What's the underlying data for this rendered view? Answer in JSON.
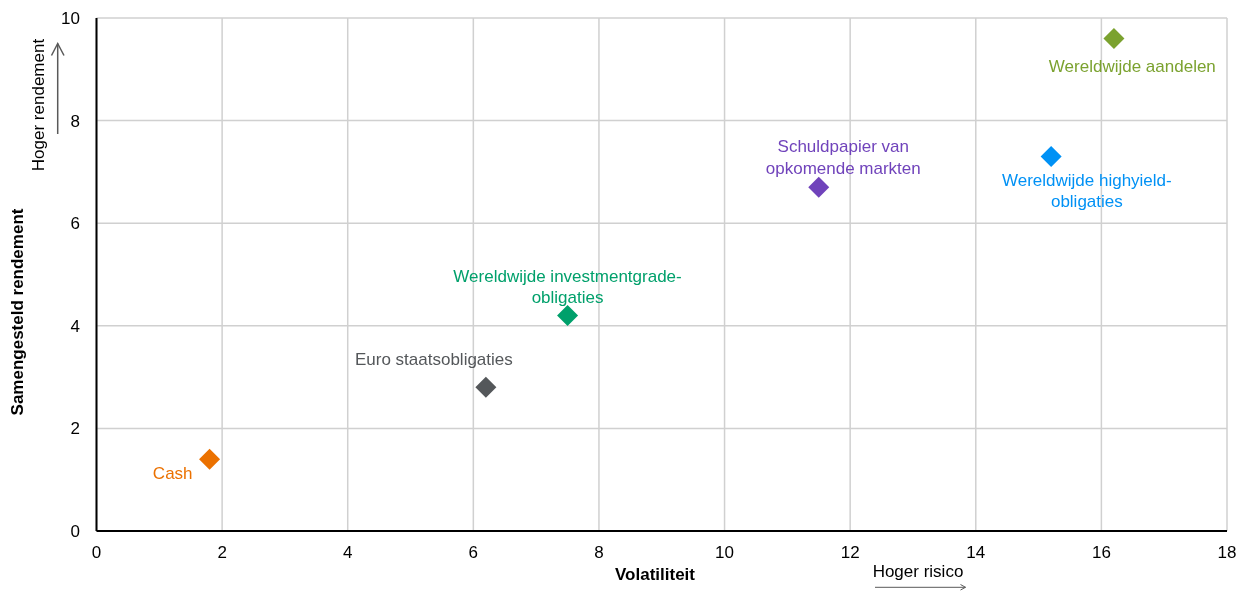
{
  "chart_data": {
    "type": "scatter",
    "xlabel": "Volatiliteit",
    "ylabel": "Samengesteld rendement",
    "annotations": [
      "Hoger rendement",
      "Hoger risico"
    ],
    "xlim": [
      0,
      18
    ],
    "xticks": [
      0,
      2,
      4,
      6,
      8,
      10,
      12,
      14,
      16,
      18
    ],
    "ylim": [
      0,
      10
    ],
    "yticks": [
      0,
      2,
      4,
      6,
      8,
      10
    ],
    "grid": true,
    "marker": "diamond",
    "series": [
      {
        "name": "Cash",
        "color": "#eb7100",
        "x": [
          1.8
        ],
        "values": [
          1.4
        ]
      },
      {
        "name": "Euro staatsobligaties",
        "color": "#54575a",
        "x": [
          6.2
        ],
        "values": [
          2.8
        ]
      },
      {
        "name": "Wereldwijde investmentgrade-obligaties",
        "color": "#00a06b",
        "x": [
          7.5
        ],
        "values": [
          4.2
        ]
      },
      {
        "name": "Schuldpapier van opkomende markten",
        "color": "#7043bb",
        "x": [
          11.5
        ],
        "values": [
          6.7
        ]
      },
      {
        "name": "Wereldwijde highyield-obligaties",
        "color": "#0091f5",
        "x": [
          15.2
        ],
        "values": [
          7.3
        ]
      },
      {
        "name": "Wereldwijde aandelen",
        "color": "#7ba22f",
        "x": [
          16.2
        ],
        "values": [
          9.6
        ]
      }
    ]
  }
}
